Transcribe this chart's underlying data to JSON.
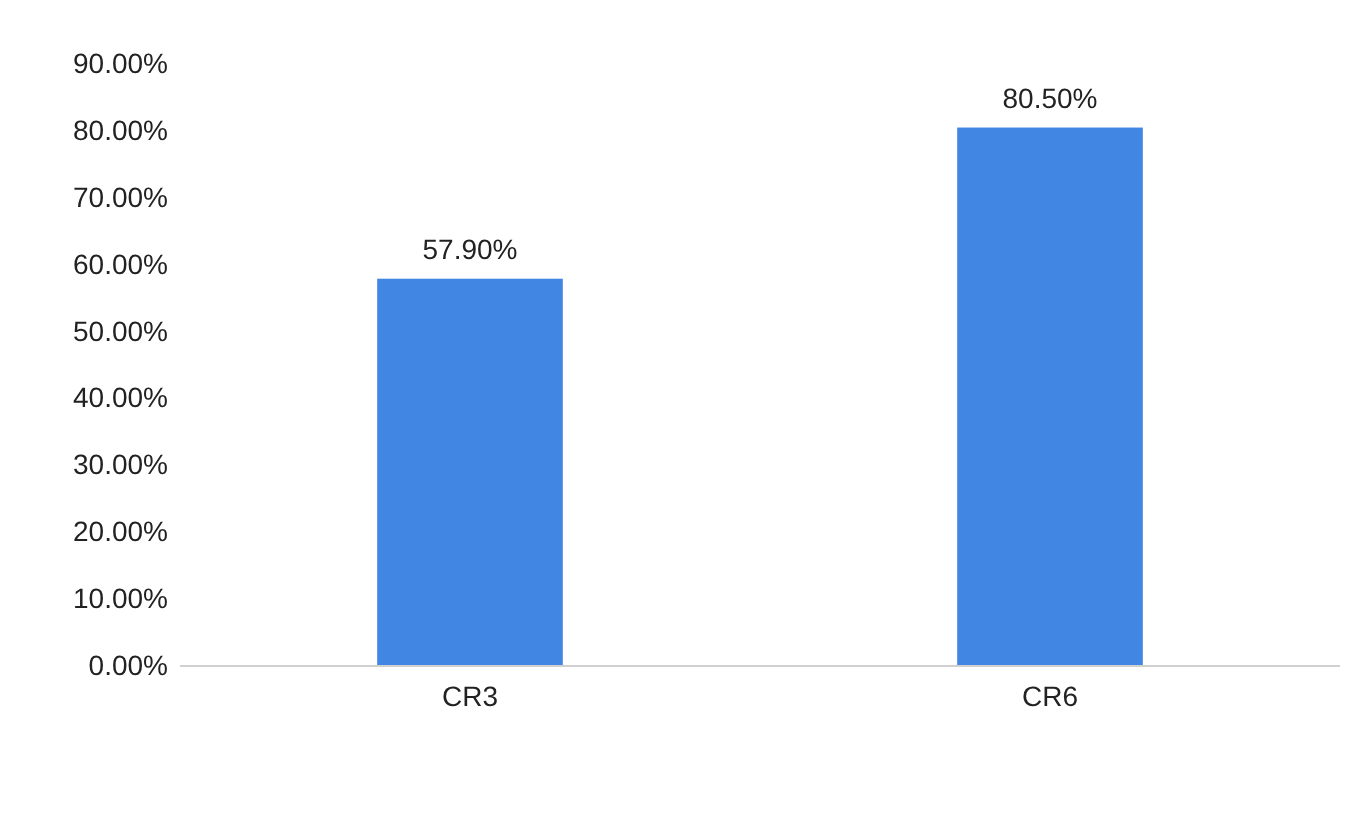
{
  "chart_data": {
    "type": "bar",
    "categories": [
      "CR3",
      "CR6"
    ],
    "values": [
      57.9,
      80.5
    ],
    "color": "#4286e3",
    "value_labels": [
      "57.90%",
      "80.50%"
    ],
    "ylim": [
      0,
      90
    ],
    "yticks": [
      {
        "value": 0,
        "label": "0.00%"
      },
      {
        "value": 10,
        "label": "10.00%"
      },
      {
        "value": 20,
        "label": "20.00%"
      },
      {
        "value": 30,
        "label": "30.00%"
      },
      {
        "value": 40,
        "label": "40.00%"
      },
      {
        "value": 50,
        "label": "50.00%"
      },
      {
        "value": 60,
        "label": "60.00%"
      },
      {
        "value": 70,
        "label": "70.00%"
      },
      {
        "value": 80,
        "label": "80.00%"
      },
      {
        "value": 90,
        "label": "90.00%"
      }
    ]
  }
}
